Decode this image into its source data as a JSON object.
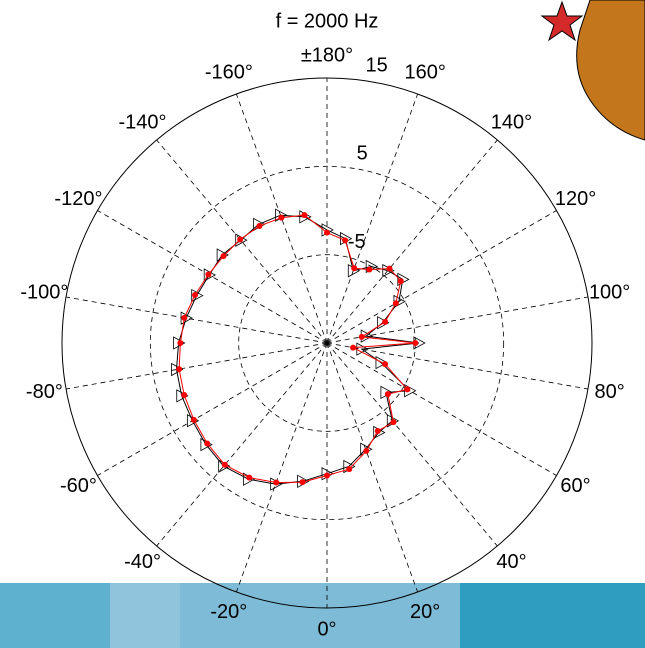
{
  "chart_data": {
    "type": "polar",
    "title": "f = 2000 Hz",
    "theta": [
      -180,
      -170,
      -160,
      -150,
      -140,
      -130,
      -120,
      -110,
      -100,
      -90,
      -80,
      -70,
      -60,
      -50,
      -40,
      -30,
      -20,
      -10,
      0,
      10,
      20,
      30,
      40,
      50,
      60,
      70,
      80,
      90,
      100,
      110,
      120,
      130,
      140,
      150,
      160,
      170
    ],
    "series": [
      {
        "color": "#000000",
        "marker": "triangle",
        "values": [
          -2.2,
          -0.5,
          0.4,
          0.5,
          0.2,
          0.5,
          0.4,
          0.7,
          1.2,
          1.8,
          2.3,
          2.5,
          2.6,
          2.9,
          3.2,
          2.8,
          2.0,
          0.9,
          -0.2,
          -0.8,
          -2.2,
          -3.3,
          -3.5,
          -6.3,
          -4.2,
          -8.5,
          -11,
          -4.6,
          -10.5,
          -8.3,
          -5.6,
          -3.8,
          -4.3,
          -5.0,
          -6.3,
          -3.0
        ]
      },
      {
        "color": "#ff0000",
        "marker": "dot",
        "values": [
          -2.5,
          -0.3,
          0.1,
          0.3,
          0.3,
          0.3,
          0.5,
          0.9,
          1.4,
          1.6,
          2.0,
          2.2,
          2.4,
          2.7,
          3.0,
          2.6,
          1.8,
          1.0,
          0.0,
          -0.5,
          -2.0,
          -3.5,
          -3.3,
          -6.0,
          -4.5,
          -8.0,
          -12.0,
          -5.0,
          -11.0,
          -8.0,
          -6.0,
          -4.1,
          -4.0,
          -5.4,
          -6.0,
          -3.2
        ]
      }
    ],
    "rlim": [
      -15,
      15
    ],
    "rticks": [
      -5,
      5,
      15
    ],
    "thetaticks": [
      {
        "value": 0,
        "label": "0°"
      },
      {
        "value": 20,
        "label": "20°"
      },
      {
        "value": 40,
        "label": "40°"
      },
      {
        "value": 60,
        "label": "60°"
      },
      {
        "value": 80,
        "label": "80°"
      },
      {
        "value": 100,
        "label": "100°"
      },
      {
        "value": 120,
        "label": "120°"
      },
      {
        "value": 140,
        "label": "140°"
      },
      {
        "value": 160,
        "label": "160°"
      },
      {
        "value": 180,
        "label": "±180°"
      },
      {
        "value": -160,
        "label": "-160°"
      },
      {
        "value": -140,
        "label": "-140°"
      },
      {
        "value": -120,
        "label": "-120°"
      },
      {
        "value": -100,
        "label": "-100°"
      },
      {
        "value": -80,
        "label": "-80°"
      },
      {
        "value": -60,
        "label": "-60°"
      },
      {
        "value": -40,
        "label": "-40°"
      },
      {
        "value": -20,
        "label": "-20°"
      }
    ]
  }
}
